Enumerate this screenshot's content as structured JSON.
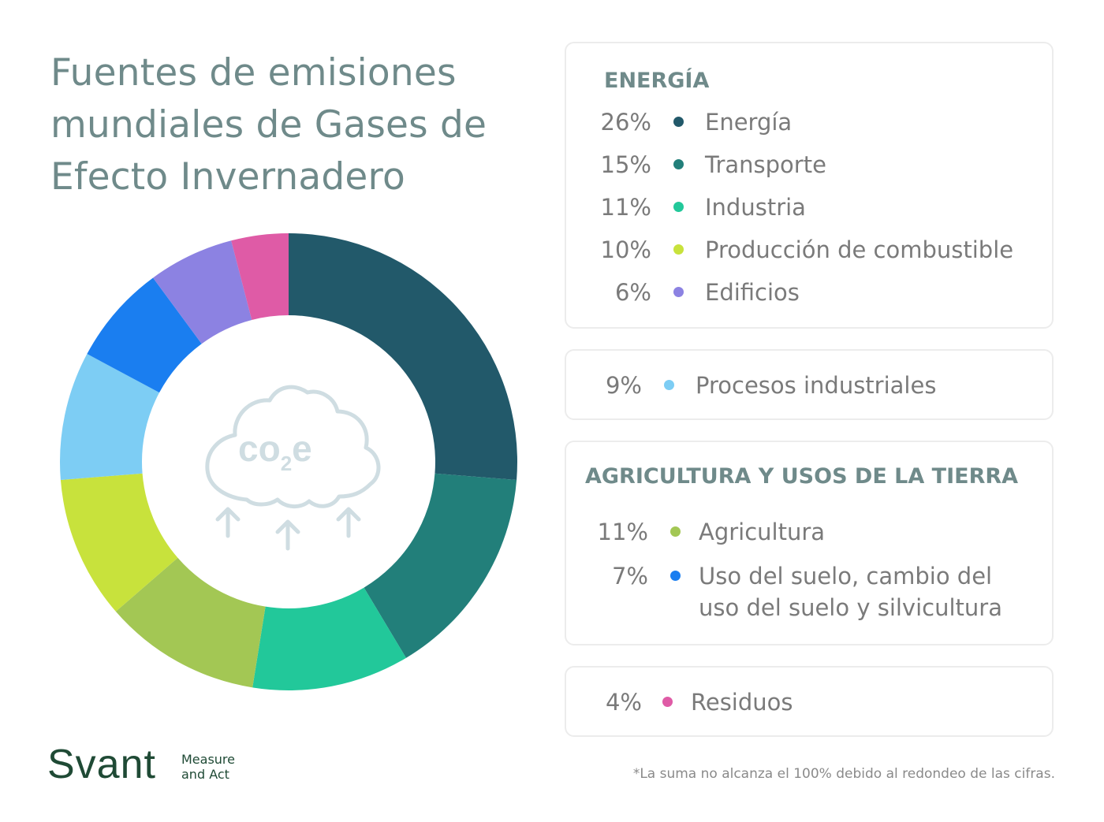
{
  "title_lines": [
    "Fuentes de emisiones",
    "mundiales de Gases de",
    "Efecto Invernadero"
  ],
  "center_icon": {
    "name": "co2e-cloud-icon",
    "text": "co",
    "subscript": "2",
    "suffix": "e",
    "color": "#cfdde2"
  },
  "chart_data": {
    "type": "pie",
    "title": "Fuentes de emisiones mundiales de Gases de Efecto Invernadero",
    "slices": [
      {
        "label": "Energía",
        "value": 26,
        "color": "#22596a"
      },
      {
        "label": "Transporte",
        "value": 15,
        "color": "#227f7a"
      },
      {
        "label": "Industria",
        "value": 11,
        "color": "#22c89a"
      },
      {
        "label": "Agricultura",
        "value": 11,
        "color": "#a3c754"
      },
      {
        "label": "Producción de combustible",
        "value": 10,
        "color": "#c8e23c"
      },
      {
        "label": "Procesos industriales",
        "value": 9,
        "color": "#7dcdf4"
      },
      {
        "label": "Uso del suelo, cambio del uso del suelo y silvicultura",
        "value": 7,
        "color": "#1a7ef0"
      },
      {
        "label": "Edificios",
        "value": 6,
        "color": "#8c82e2"
      },
      {
        "label": "Residuos",
        "value": 4,
        "color": "#df5ba6"
      }
    ]
  },
  "legend": {
    "energia": {
      "heading": "ENERGÍA",
      "items": [
        {
          "pct": "26%",
          "label": "Energía",
          "color": "#22596a"
        },
        {
          "pct": "15%",
          "label": "Transporte",
          "color": "#227f7a"
        },
        {
          "pct": "11%",
          "label": "Industria",
          "color": "#22c89a"
        },
        {
          "pct": "10%",
          "label": "Producción de combustible",
          "color": "#c8e23c"
        },
        {
          "pct": "6%",
          "label": "Edificios",
          "color": "#8c82e2"
        }
      ]
    },
    "procesos": {
      "pct": "9%",
      "label": "Procesos industriales",
      "color": "#7dcdf4"
    },
    "agricultura": {
      "heading": "AGRICULTURA Y USOS DE LA TIERRA",
      "items": [
        {
          "pct": "11%",
          "label": "Agricultura",
          "color": "#a3c754"
        },
        {
          "pct": "7%",
          "label": "Uso del suelo, cambio del uso del suelo y silvicultura",
          "color": "#1a7ef0"
        }
      ]
    },
    "residuos": {
      "pct": "4%",
      "label": "Residuos",
      "color": "#df5ba6"
    }
  },
  "logo": {
    "brand": "Svant",
    "tagline_1": "Measure",
    "tagline_2": "and Act"
  },
  "footnote": "*La suma no alcanza el 100% debido al redondeo de las cifras."
}
